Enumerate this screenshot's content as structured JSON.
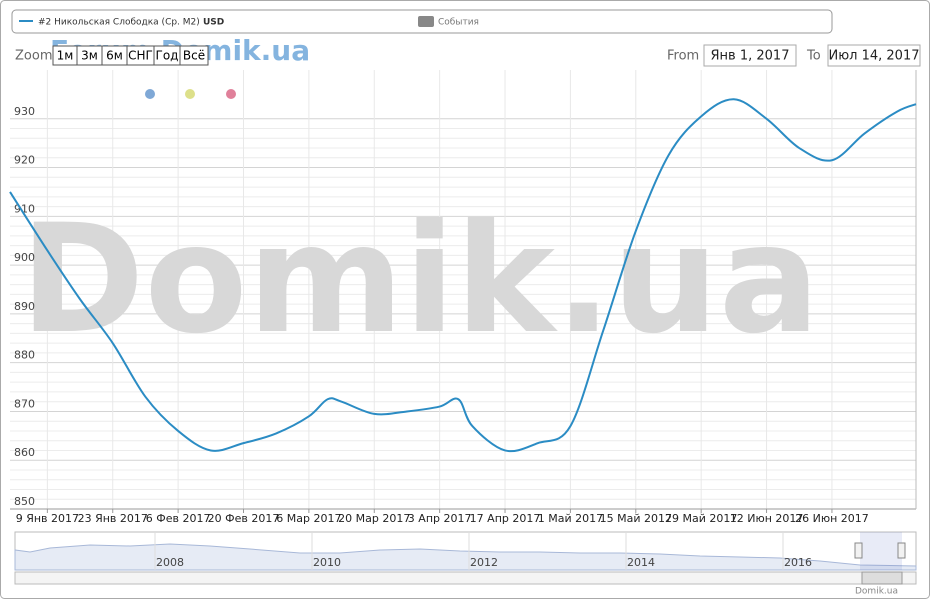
{
  "legend": {
    "events": "События"
  },
  "range_selector": {
    "zoom_label": "Zoom",
    "buttons": [
      "1м",
      "3м",
      "6м",
      "СНГ",
      "Год",
      "Всё"
    ],
    "from_label": "From",
    "from": "Янв 1, 2017",
    "to_label": "To",
    "to": "Июл 14, 2017"
  },
  "watermarks": [
    "Forum.Domik.ua",
    "Domik.ua"
  ],
  "credit": "Domik.ua",
  "navigator": {
    "labels": [
      "2008",
      "2010",
      "2012",
      "2014",
      "2016"
    ]
  },
  "chart_data": {
    "type": "line",
    "unit": "USD",
    "x": [
      "2017-01-01",
      "2017-01-09",
      "2017-01-16",
      "2017-01-23",
      "2017-01-30",
      "2017-02-06",
      "2017-02-13",
      "2017-02-20",
      "2017-02-27",
      "2017-03-06",
      "2017-03-10",
      "2017-03-13",
      "2017-03-20",
      "2017-03-27",
      "2017-04-03",
      "2017-04-07",
      "2017-04-10",
      "2017-04-17",
      "2017-04-24",
      "2017-05-01",
      "2017-05-08",
      "2017-05-15",
      "2017-05-22",
      "2017-05-29",
      "2017-06-05",
      "2017-06-12",
      "2017-06-19",
      "2017-06-26",
      "2017-07-03",
      "2017-07-10",
      "2017-07-14"
    ],
    "series": [
      {
        "name": "#2 Никольская Слободка (Ср. М2)",
        "color": "#2b8cc4",
        "values": [
          915,
          903,
          893,
          884,
          873,
          866,
          862,
          863.5,
          865.5,
          869,
          872.5,
          872,
          869.5,
          870,
          871,
          872.5,
          867,
          862,
          863.5,
          867,
          886.5,
          907,
          922.5,
          930.5,
          934,
          930,
          924,
          921.5,
          927,
          931.5,
          933
        ]
      }
    ],
    "xlim": [
      "2017-01-01",
      "2017-07-14"
    ],
    "xticks": [
      {
        "value": "2017-01-09",
        "label": "9 Янв 2017"
      },
      {
        "value": "2017-01-23",
        "label": "23 Янв 2017"
      },
      {
        "value": "2017-02-06",
        "label": "6 Фев 2017"
      },
      {
        "value": "2017-02-20",
        "label": "20 Фев 2017"
      },
      {
        "value": "2017-03-06",
        "label": "6 Мар 2017"
      },
      {
        "value": "2017-03-20",
        "label": "20 Мар 2017"
      },
      {
        "value": "2017-04-03",
        "label": "3 Апр 2017"
      },
      {
        "value": "2017-04-17",
        "label": "17 Апр 2017"
      },
      {
        "value": "2017-05-01",
        "label": "1 Май 2017"
      },
      {
        "value": "2017-05-15",
        "label": "15 Май 2017"
      },
      {
        "value": "2017-05-29",
        "label": "29 Май 2017"
      },
      {
        "value": "2017-06-12",
        "label": "12 Июн 2017"
      },
      {
        "value": "2017-06-26",
        "label": "26 Июн 2017"
      }
    ],
    "ylim": [
      850,
      940
    ],
    "yticks": [
      850,
      860,
      870,
      880,
      890,
      900,
      910,
      920,
      930
    ],
    "grid": true
  }
}
